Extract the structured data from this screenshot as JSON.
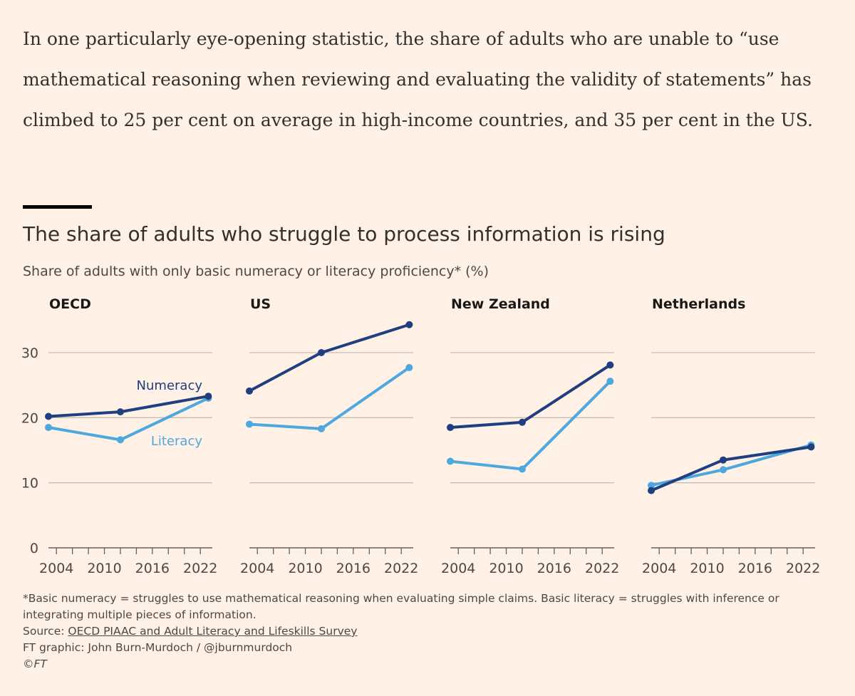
{
  "article": {
    "paragraph": "In one particularly eye-opening statistic, the share of adults who are unable to “use mathematical reasoning when reviewing and evaluating the validity of statements” has climbed to 25 per cent on average in high-income countries, and 35 per cent in the US."
  },
  "chart_data": {
    "type": "line",
    "title": "The share of adults who struggle to process information is rising",
    "subtitle": "Share of adults with only basic numeracy or literacy proficiency* (%)",
    "xlim": [
      2003,
      2023.5
    ],
    "ylim": [
      0,
      35
    ],
    "yticks": [
      0,
      10,
      20,
      30
    ],
    "xticks": [
      2004,
      2010,
      2016,
      2022
    ],
    "grid": true,
    "colors": {
      "Numeracy": "#1f3f80",
      "Literacy": "#4da8de"
    },
    "series_labels": {
      "numeracy": "Numeracy",
      "literacy": "Literacy"
    },
    "panels": [
      {
        "name": "OECD",
        "x": [
          2003,
          2012,
          2023
        ],
        "series": [
          {
            "name": "Numeracy",
            "values": [
              20.2,
              20.9,
              23.3
            ]
          },
          {
            "name": "Literacy",
            "values": [
              18.5,
              16.6,
              23.0
            ]
          }
        ]
      },
      {
        "name": "US",
        "x": [
          2003,
          2012,
          2023
        ],
        "series": [
          {
            "name": "Numeracy",
            "values": [
              24.1,
              30.0,
              34.3
            ]
          },
          {
            "name": "Literacy",
            "values": [
              19.0,
              18.3,
              27.7
            ]
          }
        ]
      },
      {
        "name": "New Zealand",
        "x": [
          2003,
          2012,
          2023
        ],
        "series": [
          {
            "name": "Numeracy",
            "values": [
              18.5,
              19.3,
              28.1
            ]
          },
          {
            "name": "Literacy",
            "values": [
              13.3,
              12.1,
              25.6
            ]
          }
        ]
      },
      {
        "name": "Netherlands",
        "x": [
          2003,
          2012,
          2023
        ],
        "series": [
          {
            "name": "Numeracy",
            "values": [
              8.8,
              13.5,
              15.5
            ]
          },
          {
            "name": "Literacy",
            "values": [
              9.6,
              12.0,
              15.8
            ]
          }
        ]
      }
    ]
  },
  "footer": {
    "note": "*Basic numeracy = struggles to use mathematical reasoning when evaluating simple claims. Basic literacy = struggles with inference or integrating multiple pieces of information.",
    "source_prefix": "Source: ",
    "source_link": "OECD PIAAC and Adult Literacy and Lifeskills Survey",
    "credit": "FT graphic: John Burn-Murdoch / @jburnmurdoch",
    "copyright": "©FT"
  }
}
